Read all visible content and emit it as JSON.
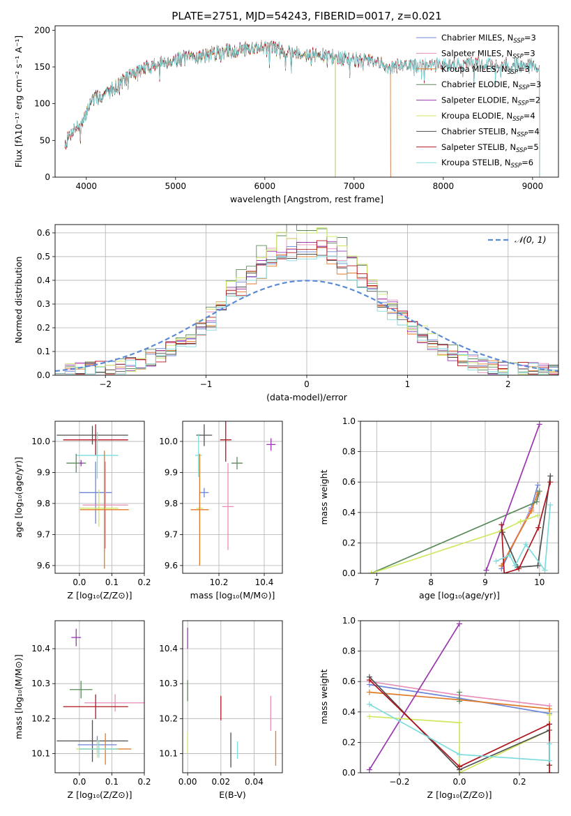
{
  "figure_title": "PLATE=2751, MJD=54243, FIBERID=0017, z=0.021",
  "colors": {
    "c0": "#6a86d8",
    "c1": "#e88cb8",
    "c2": "#e07a26",
    "c3": "#5a8a5a",
    "c4": "#9a36b0",
    "c5": "#cde85e",
    "c6": "#4e4e4e",
    "c7": "#b0141c",
    "c8": "#7edcdc",
    "normal": "#5b8bd6"
  },
  "chart_data": [
    {
      "id": "spectrum",
      "type": "line",
      "xlabel": "wavelength [Angstrom, rest frame]",
      "ylabel": "Flux [fλ10⁻¹⁷ erg cm⁻² s⁻¹ A⁻¹]",
      "xlim": [
        3650,
        9290
      ],
      "ylim": [
        0,
        206
      ],
      "xticks": [
        4000,
        5000,
        6000,
        7000,
        8000,
        9000
      ],
      "yticks": [
        0,
        50,
        100,
        150,
        200
      ],
      "grid": false,
      "legend_position": "top-right",
      "continuum": [
        [
          3760,
          45
        ],
        [
          3850,
          65
        ],
        [
          3960,
          72
        ],
        [
          4050,
          105
        ],
        [
          4200,
          112
        ],
        [
          4350,
          125
        ],
        [
          4500,
          140
        ],
        [
          4700,
          150
        ],
        [
          4900,
          158
        ],
        [
          5100,
          162
        ],
        [
          5300,
          165
        ],
        [
          5500,
          170
        ],
        [
          5800,
          175
        ],
        [
          6000,
          178
        ],
        [
          6200,
          173
        ],
        [
          6500,
          167
        ],
        [
          6800,
          163
        ],
        [
          7000,
          160
        ],
        [
          7200,
          157
        ],
        [
          7400,
          150
        ],
        [
          7700,
          152
        ],
        [
          8000,
          153
        ],
        [
          8300,
          155
        ],
        [
          8600,
          153
        ],
        [
          8900,
          152
        ],
        [
          9080,
          150
        ]
      ],
      "series": [
        {
          "name": "Chabrier MILES, N_SSP=3",
          "label": "Chabrier MILES, N",
          "sub": "SSP",
          "suffix": "=3",
          "color_key": "c0",
          "x_range": [
            3760,
            7410
          ]
        },
        {
          "name": "Salpeter MILES, N_SSP=3",
          "label": "Salpeter MILES, N",
          "sub": "SSP",
          "suffix": "=3",
          "color_key": "c1",
          "x_range": [
            3760,
            7410
          ]
        },
        {
          "name": "Kroupa MILES, N_SSP=3",
          "label": "Kroupa MILES, N",
          "sub": "SSP",
          "suffix": "=3",
          "color_key": "c2",
          "x_range": [
            3760,
            7410
          ]
        },
        {
          "name": "Chabrier ELODIE, N_SSP=3",
          "label": "Chabrier ELODIE, N",
          "sub": "SSP",
          "suffix": "=3",
          "color_key": "c3",
          "x_range": [
            3900,
            6790
          ]
        },
        {
          "name": "Salpeter ELODIE, N_SSP=2",
          "label": "Salpeter ELODIE, N",
          "sub": "SSP",
          "suffix": "=2",
          "color_key": "c4",
          "x_range": [
            3900,
            6790
          ]
        },
        {
          "name": "Kroupa ELODIE, N_SSP=4",
          "label": "Kroupa ELODIE, N",
          "sub": "SSP",
          "suffix": "=4",
          "color_key": "c5",
          "x_range": [
            3900,
            6790
          ]
        },
        {
          "name": "Chabrier STELIB, N_SSP=4",
          "label": "Chabrier STELIB, N",
          "sub": "SSP",
          "suffix": "=4",
          "color_key": "c6",
          "x_range": [
            3760,
            9080
          ]
        },
        {
          "name": "Salpeter STELIB, N_SSP=5",
          "label": "Salpeter STELIB, N",
          "sub": "SSP",
          "suffix": "=5",
          "color_key": "c7",
          "x_range": [
            3760,
            9080
          ]
        },
        {
          "name": "Kroupa STELIB, N_SSP=6",
          "label": "Kroupa STELIB, N",
          "sub": "SSP",
          "suffix": "=6",
          "color_key": "c8",
          "x_range": [
            3760,
            9080
          ]
        }
      ]
    },
    {
      "id": "residuals",
      "type": "histogram",
      "xlabel": "(data-model)/error",
      "ylabel": "Normed distribution",
      "xlim": [
        -2.5,
        2.5
      ],
      "ylim": [
        0,
        0.635
      ],
      "xticks": [
        -2,
        -1,
        0,
        1,
        2
      ],
      "yticks": [
        0.0,
        0.1,
        0.2,
        0.3,
        0.4,
        0.5,
        0.6
      ],
      "grid": true,
      "legend_position": "top-right",
      "bin_width": 0.1,
      "normal_curve": {
        "name": "𝒩(0, 1)",
        "mean": 0,
        "sigma": 1,
        "color_key": "normal"
      },
      "series_color_keys": [
        "c0",
        "c1",
        "c2",
        "c3",
        "c4",
        "c5",
        "c6",
        "c7",
        "c8"
      ],
      "peak_values": [
        0.52,
        0.55,
        0.5,
        0.61,
        0.56,
        0.6,
        0.51,
        0.53,
        0.49
      ]
    },
    {
      "id": "age_vs_Z",
      "type": "errorbar",
      "xlabel": "Z [log₁₀(Z/Z⊙)]",
      "ylabel": "age  [log₁₀(age/yr)]",
      "xlim": [
        -0.075,
        0.2
      ],
      "ylim": [
        9.575,
        10.065
      ],
      "xticks": [
        0.0,
        0.1,
        0.2
      ],
      "yticks": [
        9.6,
        9.7,
        9.8,
        9.9,
        10.0
      ],
      "grid": true,
      "points": [
        {
          "color_key": "c6",
          "x": 0.04,
          "xerr": 0.11,
          "y": 10.02,
          "yerr": 0.03
        },
        {
          "color_key": "c7",
          "x": 0.05,
          "xerr": 0.1,
          "y": 10.005,
          "yerr": 0.05
        },
        {
          "color_key": "c8",
          "x": 0.055,
          "xerr": 0.065,
          "y": 9.955,
          "yerr": 0.075
        },
        {
          "color_key": "c3",
          "x": -0.01,
          "xerr": 0.03,
          "y": 9.93,
          "yerr": 0.03
        },
        {
          "color_key": "c0",
          "x": 0.05,
          "xerr": 0.05,
          "y": 9.835,
          "yerr": 0.1
        },
        {
          "color_key": "c4",
          "x": 0.005,
          "xerr": 0.005,
          "y": 9.93,
          "yerr": 0.01
        },
        {
          "color_key": "c1",
          "x": 0.08,
          "xerr": 0.07,
          "y": 9.795,
          "yerr": 0.14
        },
        {
          "color_key": "c5",
          "x": 0.06,
          "xerr": 0.06,
          "y": 9.785,
          "yerr": 0.06
        },
        {
          "color_key": "c2",
          "x": 0.077,
          "xerr": 0.075,
          "y": 9.78,
          "yerr": 0.19
        }
      ]
    },
    {
      "id": "age_vs_mass",
      "type": "errorbar",
      "xlabel": "mass [log₁₀(M/M⊙)]",
      "ylabel": "",
      "xlim": [
        10.04,
        10.48
      ],
      "ylim": [
        9.575,
        10.065
      ],
      "xticks": [
        10.2,
        10.4
      ],
      "yticks": [
        9.6,
        9.7,
        9.8,
        9.9,
        10.0
      ],
      "grid": true,
      "points": [
        {
          "color_key": "c6",
          "x": 10.135,
          "xerr": 0.035,
          "y": 10.02,
          "yerr": 0.035
        },
        {
          "color_key": "c7",
          "x": 10.23,
          "xerr": 0.025,
          "y": 10.005,
          "yerr": 0.07
        },
        {
          "color_key": "c8",
          "x": 10.11,
          "xerr": 0.015,
          "y": 9.955,
          "yerr": 0.07
        },
        {
          "color_key": "c3",
          "x": 10.28,
          "xerr": 0.025,
          "y": 9.93,
          "yerr": 0.02
        },
        {
          "color_key": "c4",
          "x": 10.43,
          "xerr": 0.02,
          "y": 9.99,
          "yerr": 0.02
        },
        {
          "color_key": "c0",
          "x": 10.135,
          "xerr": 0.02,
          "y": 9.835,
          "yerr": 0.015
        },
        {
          "color_key": "c1",
          "x": 10.24,
          "xerr": 0.025,
          "y": 9.79,
          "yerr": 0.14
        },
        {
          "color_key": "c5",
          "x": 10.115,
          "xerr": 0.015,
          "y": 9.785,
          "yerr": 0.06
        },
        {
          "color_key": "c2",
          "x": 10.115,
          "xerr": 0.04,
          "y": 9.78,
          "yerr": 0.18
        }
      ]
    },
    {
      "id": "weight_vs_age",
      "type": "line",
      "xlabel": "age  [log₁₀(age/yr)]",
      "ylabel": "mass weight",
      "xlim": [
        6.7,
        10.35
      ],
      "ylim": [
        0,
        1
      ],
      "xticks": [
        7,
        8,
        9,
        10
      ],
      "yticks": [
        0.0,
        0.2,
        0.4,
        0.6,
        0.8,
        1.0
      ],
      "grid": true,
      "series": [
        {
          "color_key": "c0",
          "x": [
            9.3,
            9.85,
            9.97
          ],
          "y": [
            0.03,
            0.43,
            0.58
          ]
        },
        {
          "color_key": "c1",
          "x": [
            9.3,
            9.85,
            9.97
          ],
          "y": [
            0.05,
            0.42,
            0.52
          ]
        },
        {
          "color_key": "c2",
          "x": [
            9.3,
            9.85,
            9.97
          ],
          "y": [
            0.05,
            0.41,
            0.53
          ]
        },
        {
          "color_key": "c3",
          "x": [
            6.9,
            9.95,
            10.0
          ],
          "y": [
            0.0,
            0.47,
            0.54
          ]
        },
        {
          "color_key": "c4",
          "x": [
            9.02,
            10.0
          ],
          "y": [
            0.02,
            0.98
          ]
        },
        {
          "color_key": "c5",
          "x": [
            6.9,
            9.3,
            9.65,
            9.97
          ],
          "y": [
            0.0,
            0.28,
            0.34,
            0.38
          ]
        },
        {
          "color_key": "c6",
          "x": [
            9.32,
            9.6,
            9.97,
            10.2
          ],
          "y": [
            0.27,
            0.04,
            0.05,
            0.64
          ]
        },
        {
          "color_key": "c7",
          "x": [
            9.3,
            9.35,
            9.62,
            9.98,
            10.2
          ],
          "y": [
            0.32,
            0.0,
            0.03,
            0.3,
            0.6
          ]
        },
        {
          "color_key": "c8",
          "x": [
            9.2,
            9.45,
            9.55,
            9.75,
            10.1,
            10.2
          ],
          "y": [
            0.08,
            0.12,
            0.05,
            0.19,
            0.02,
            0.45
          ]
        }
      ]
    },
    {
      "id": "mass_vs_Z",
      "type": "errorbar",
      "xlabel": "Z [log₁₀(Z/Z⊙)]",
      "ylabel": "mass [log₁₀(M/M⊙)]",
      "xlim": [
        -0.075,
        0.2
      ],
      "ylim": [
        10.045,
        10.48
      ],
      "xticks": [
        0.0,
        0.1,
        0.2
      ],
      "yticks": [
        10.1,
        10.2,
        10.3,
        10.4
      ],
      "grid": true,
      "points": [
        {
          "color_key": "c4",
          "x": -0.01,
          "xerr": 0.015,
          "y": 10.432,
          "yerr": 0.025
        },
        {
          "color_key": "c3",
          "x": 0.005,
          "xerr": 0.035,
          "y": 10.283,
          "yerr": 0.025
        },
        {
          "color_key": "c1",
          "x": 0.11,
          "xerr": 0.095,
          "y": 10.245,
          "yerr": 0.025
        },
        {
          "color_key": "c7",
          "x": 0.05,
          "xerr": 0.1,
          "y": 10.234,
          "yerr": 0.035
        },
        {
          "color_key": "c6",
          "x": 0.04,
          "xerr": 0.11,
          "y": 10.136,
          "yerr": 0.06
        },
        {
          "color_key": "c0",
          "x": 0.055,
          "xerr": 0.06,
          "y": 10.125,
          "yerr": 0.025
        },
        {
          "color_key": "c2",
          "x": 0.08,
          "xerr": 0.08,
          "y": 10.113,
          "yerr": 0.045
        },
        {
          "color_key": "c5",
          "x": 0.055,
          "xerr": 0.065,
          "y": 10.113,
          "yerr": 0.025
        },
        {
          "color_key": "c8",
          "x": 0.06,
          "xerr": 0.06,
          "y": 10.113,
          "yerr": 0.025
        }
      ]
    },
    {
      "id": "mass_vs_ebv",
      "type": "errorbar",
      "xlabel": "E(B-V)",
      "ylabel": "",
      "xlim": [
        -0.003,
        0.057
      ],
      "ylim": [
        10.045,
        10.48
      ],
      "xticks": [
        0.0,
        0.02,
        0.04
      ],
      "yticks": [
        10.1,
        10.2,
        10.3,
        10.4
      ],
      "grid": true,
      "points": [
        {
          "color_key": "c4",
          "x": 0.0,
          "xerr": 0.0,
          "y": 10.43,
          "yerr": 0.03
        },
        {
          "color_key": "c3",
          "x": 0.0,
          "xerr": 0.0,
          "y": 10.28,
          "yerr": 0.03
        },
        {
          "color_key": "c5",
          "x": 0.0,
          "xerr": 0.0,
          "y": 10.13,
          "yerr": 0.03
        },
        {
          "color_key": "c7",
          "x": 0.02,
          "xerr": 0.0,
          "y": 10.23,
          "yerr": 0.035
        },
        {
          "color_key": "c6",
          "x": 0.026,
          "xerr": 0.0,
          "y": 10.11,
          "yerr": 0.05
        },
        {
          "color_key": "c8",
          "x": 0.03,
          "xerr": 0.0,
          "y": 10.11,
          "yerr": 0.025
        },
        {
          "color_key": "c1",
          "x": 0.05,
          "xerr": 0.0,
          "y": 10.215,
          "yerr": 0.05
        },
        {
          "color_key": "c2",
          "x": 0.053,
          "xerr": 0.0,
          "y": 10.115,
          "yerr": 0.05
        }
      ]
    },
    {
      "id": "weight_vs_Z",
      "type": "line",
      "xlabel": "Z [log₁₀(Z/Z⊙)]",
      "ylabel": "mass weight",
      "xlim": [
        -0.33,
        0.33
      ],
      "ylim": [
        0,
        1
      ],
      "xticks": [
        -0.2,
        0.0,
        0.2
      ],
      "yticks": [
        0.0,
        0.2,
        0.4,
        0.6,
        0.8,
        1.0
      ],
      "grid": true,
      "series": [
        {
          "color_key": "c0",
          "x": [
            -0.3,
            0.0,
            0.3
          ],
          "y": [
            0.58,
            0.49,
            0.39
          ]
        },
        {
          "color_key": "c1",
          "x": [
            -0.3,
            0.0,
            0.3
          ],
          "y": [
            0.6,
            0.51,
            0.44
          ]
        },
        {
          "color_key": "c2",
          "x": [
            -0.3,
            0.0,
            0.3,
            0.3
          ],
          "y": [
            0.53,
            0.48,
            0.42,
            0.05
          ]
        },
        {
          "color_key": "c3",
          "x": [
            0.0,
            0.0
          ],
          "y": [
            0.47,
            0.53
          ]
        },
        {
          "color_key": "c4",
          "x": [
            -0.3,
            0.0
          ],
          "y": [
            0.02,
            0.98
          ]
        },
        {
          "color_key": "c5",
          "x": [
            -0.3,
            0.0,
            0.0,
            0.3,
            0.3
          ],
          "y": [
            0.37,
            0.33,
            0.0,
            0.28,
            0.38
          ]
        },
        {
          "color_key": "c6",
          "x": [
            -0.3,
            0.0,
            0.3,
            0.3
          ],
          "y": [
            0.63,
            0.02,
            0.28,
            0.05
          ]
        },
        {
          "color_key": "c7",
          "x": [
            -0.3,
            0.0,
            0.3,
            0.3
          ],
          "y": [
            0.61,
            0.04,
            0.32,
            0.0
          ]
        },
        {
          "color_key": "c8",
          "x": [
            -0.3,
            0.0,
            0.3,
            0.3
          ],
          "y": [
            0.45,
            0.12,
            0.08,
            0.19
          ]
        }
      ]
    }
  ]
}
